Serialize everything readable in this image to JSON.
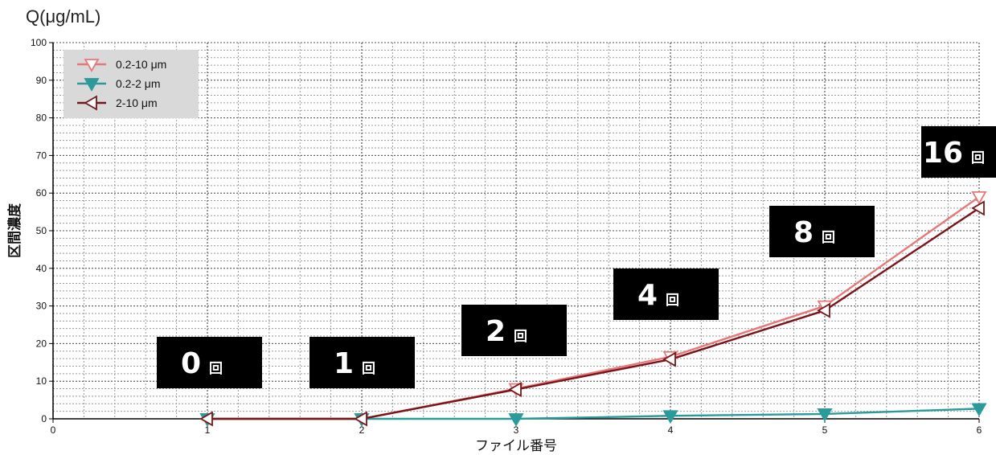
{
  "chart_data": {
    "type": "line",
    "unit_label": "Q(μg/mL)",
    "xlabel": "ファイル番号",
    "ylabel": "区間濃度",
    "xlim": [
      0,
      6
    ],
    "ylim": [
      0,
      100
    ],
    "x_ticks": [
      "0",
      "1",
      "2",
      "3",
      "4",
      "5",
      "6"
    ],
    "y_ticks": [
      "0",
      "10",
      "20",
      "30",
      "40",
      "50",
      "60",
      "70",
      "80",
      "90",
      "100"
    ],
    "grid": true,
    "legend_placement": "top-left",
    "series": [
      {
        "name": "0.2-10 μm",
        "color": "#e87878",
        "marker": "triangle-down-open",
        "x": [
          1,
          2,
          3,
          4,
          5,
          6
        ],
        "y": [
          0,
          0,
          8,
          16.5,
          30,
          59
        ]
      },
      {
        "name": "0.2-2 μm",
        "color": "#2a9a9a",
        "marker": "triangle-down-filled",
        "x": [
          1,
          2,
          3,
          4,
          5,
          6
        ],
        "y": [
          0,
          0,
          0,
          0.8,
          1.3,
          2.7
        ]
      },
      {
        "name": "2-10 μm",
        "color": "#7a1418",
        "marker": "triangle-left-open",
        "x": [
          1,
          2,
          3,
          4,
          5,
          6
        ],
        "y": [
          0,
          0,
          7.8,
          15.8,
          28.8,
          56
        ]
      }
    ],
    "annotations": [
      {
        "number": "0",
        "unit": "回"
      },
      {
        "number": "1",
        "unit": "回"
      },
      {
        "number": "2",
        "unit": "回"
      },
      {
        "number": "4",
        "unit": "回"
      },
      {
        "number": "8",
        "unit": "回"
      },
      {
        "number": "16",
        "unit": "回"
      }
    ]
  }
}
